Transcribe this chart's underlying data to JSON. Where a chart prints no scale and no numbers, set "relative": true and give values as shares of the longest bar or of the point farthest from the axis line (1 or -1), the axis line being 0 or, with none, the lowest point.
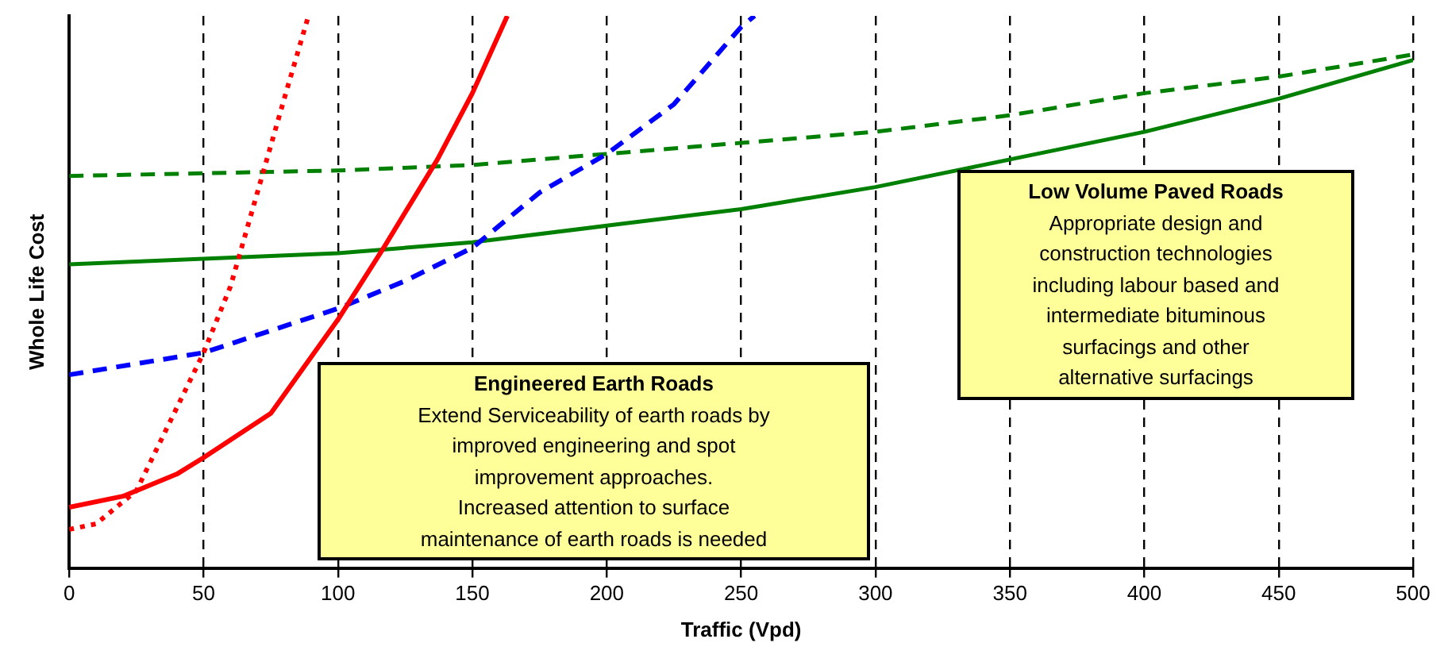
{
  "chart_data": {
    "type": "line",
    "relative": true,
    "xlabel": "Traffic (Vpd)",
    "ylabel": "Whole Life Cost",
    "xlim": [
      0,
      500
    ],
    "xticks": [
      0,
      50,
      100,
      150,
      200,
      250,
      300,
      350,
      400,
      450,
      500
    ],
    "grid": "x",
    "legend": false,
    "marker": "none",
    "series": [
      {
        "color": "#ff0000",
        "line_style": "dotted",
        "x": [
          0,
          10,
          25,
          40,
          50,
          60,
          70,
          80,
          89
        ],
        "values": [
          0.07,
          0.08,
          0.14,
          0.29,
          0.39,
          0.51,
          0.68,
          0.85,
          1
        ]
      },
      {
        "color": "#ff0000",
        "line_style": "solid",
        "x": [
          0,
          20,
          40,
          50,
          75,
          100,
          117,
          137,
          150,
          163
        ],
        "values": [
          0.11,
          0.13,
          0.17,
          0.2,
          0.28,
          0.45,
          0.58,
          0.74,
          0.86,
          1
        ]
      },
      {
        "color": "#0000ff",
        "line_style": "dashed",
        "x": [
          0,
          25,
          50,
          75,
          100,
          125,
          150,
          175,
          200,
          225,
          250,
          255
        ],
        "values": [
          0.35,
          0.37,
          0.39,
          0.43,
          0.47,
          0.52,
          0.58,
          0.68,
          0.75,
          0.84,
          0.98,
          1
        ]
      },
      {
        "color": "#008000",
        "line_style": "dashed",
        "x": [
          0,
          100,
          150,
          200,
          250,
          300,
          350,
          400,
          450,
          500
        ],
        "values": [
          0.71,
          0.72,
          0.73,
          0.75,
          0.77,
          0.79,
          0.82,
          0.86,
          0.89,
          0.93
        ]
      },
      {
        "color": "#008000",
        "line_style": "solid",
        "x": [
          0,
          50,
          100,
          150,
          200,
          250,
          300,
          350,
          400,
          450,
          500
        ],
        "values": [
          0.55,
          0.56,
          0.57,
          0.59,
          0.62,
          0.65,
          0.69,
          0.74,
          0.79,
          0.85,
          0.92
        ]
      }
    ],
    "annotations": [
      "Engineered Earth Roads\nExtend Serviceability of earth roads by\nimproved engineering and spot\nimprovement approaches.\nIncreased attention to surface\nmaintenance of earth roads is needed",
      "Low Volume Paved Roads\nAppropriate design and\nconstruction technologies\nincluding labour based and\nintermediate bituminous\nsurfacings and other\nalternative surfacings"
    ]
  }
}
